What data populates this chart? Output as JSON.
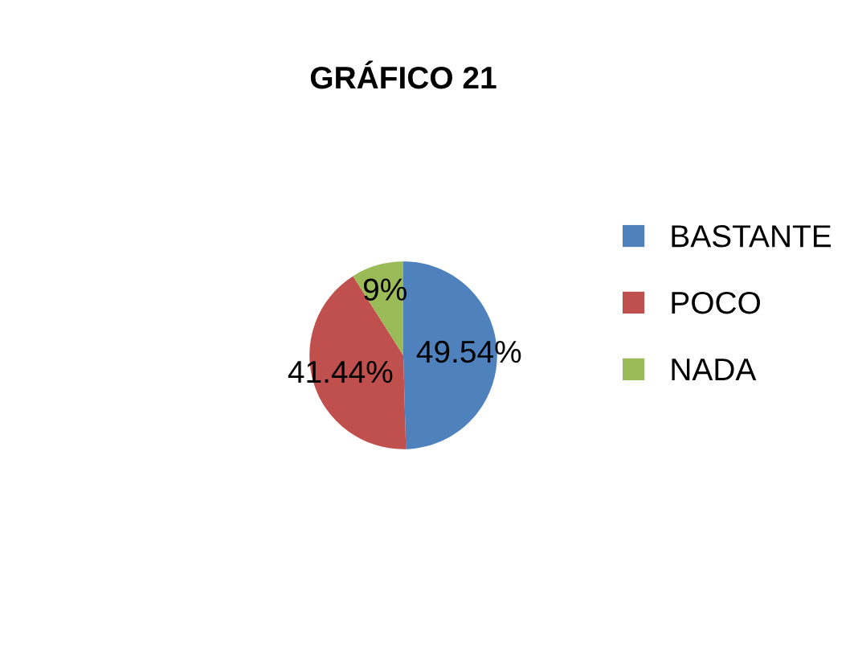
{
  "chart_data": {
    "type": "pie",
    "title": "GRÁFICO 21",
    "categories": [
      "BASTANTE",
      "POCO",
      "NADA"
    ],
    "values": [
      49.54,
      41.44,
      9
    ],
    "value_labels": [
      "49.54%",
      "41.44%",
      "9%"
    ],
    "colors": [
      "#4f81bd",
      "#c0504d",
      "#9bbb59"
    ],
    "legend": "right"
  }
}
